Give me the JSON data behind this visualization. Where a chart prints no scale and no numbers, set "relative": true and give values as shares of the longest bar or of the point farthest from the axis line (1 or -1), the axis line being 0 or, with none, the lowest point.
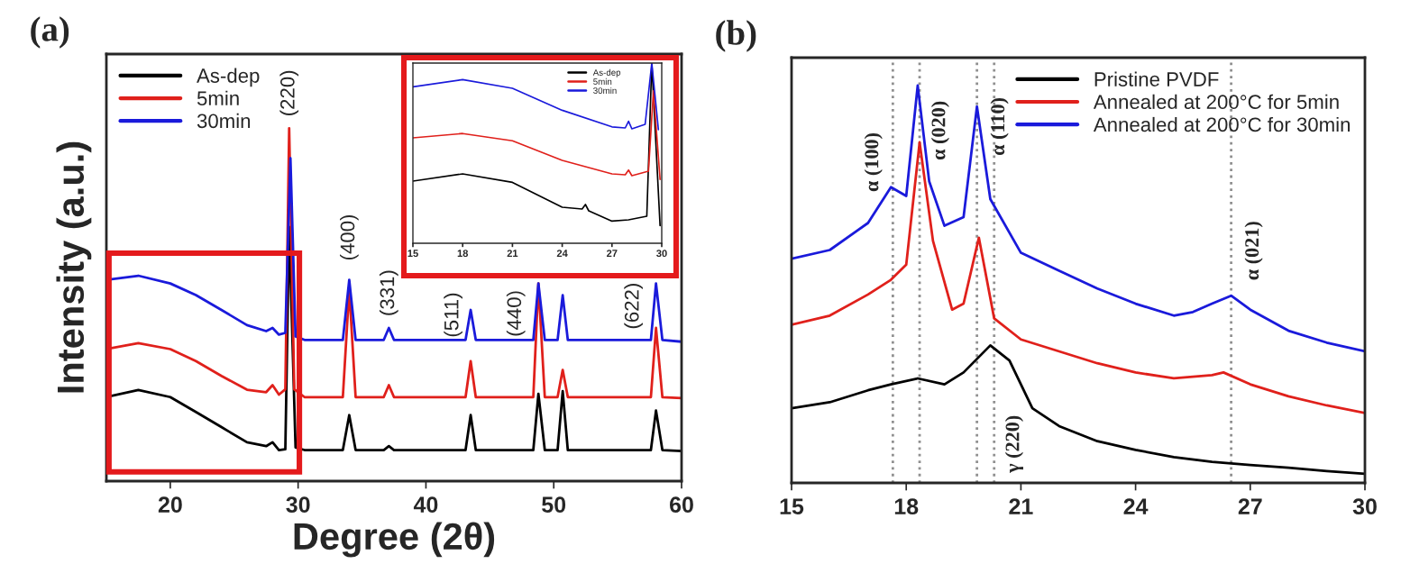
{
  "chart_data": [
    {
      "type": "line",
      "title": "(a)",
      "xlabel": "Degree (2θ)",
      "ylabel": "Intensity (a.u.)",
      "relative": true,
      "xlim": [
        15,
        60
      ],
      "xticks": [
        20,
        30,
        40,
        50,
        60
      ],
      "tick_labels": "x",
      "legend": "top left",
      "grid": false,
      "series": [
        {
          "name": "As-dep",
          "color": "#000000",
          "x": [
            15,
            17.5,
            20,
            22,
            24,
            26,
            27.5,
            28,
            28.5,
            29.0,
            29.3,
            29.8,
            30.5,
            33.5,
            34.0,
            34.5,
            36.7,
            37.1,
            37.5,
            43.1,
            43.5,
            43.9,
            48.4,
            48.8,
            49.3,
            50.3,
            50.7,
            51.1,
            57.6,
            58.0,
            58.5,
            60
          ],
          "values": [
            0.238,
            0.258,
            0.238,
            0.196,
            0.153,
            0.11,
            0.099,
            0.11,
            0.088,
            0.09,
            0.72,
            0.095,
            0.088,
            0.088,
            0.187,
            0.088,
            0.088,
            0.099,
            0.088,
            0.088,
            0.187,
            0.088,
            0.088,
            0.247,
            0.088,
            0.088,
            0.255,
            0.088,
            0.088,
            0.2,
            0.088,
            0.085
          ]
        },
        {
          "name": "5min",
          "color": "#e0201b",
          "x": [
            15,
            17.5,
            20,
            22,
            24,
            26,
            27.5,
            28,
            28.5,
            29.0,
            29.3,
            29.7,
            30.5,
            33.5,
            34.0,
            34.5,
            36.7,
            37.1,
            37.5,
            43.1,
            43.5,
            43.9,
            48.4,
            48.8,
            49.3,
            50.3,
            50.7,
            51.1,
            57.6,
            58.0,
            58.5,
            60
          ],
          "values": [
            0.374,
            0.391,
            0.374,
            0.34,
            0.298,
            0.259,
            0.252,
            0.272,
            0.245,
            0.26,
            1.0,
            0.26,
            0.238,
            0.238,
            0.544,
            0.238,
            0.238,
            0.272,
            0.238,
            0.238,
            0.34,
            0.238,
            0.238,
            0.56,
            0.238,
            0.238,
            0.315,
            0.238,
            0.238,
            0.434,
            0.238,
            0.235
          ]
        },
        {
          "name": "30min",
          "color": "#1a1adb",
          "x": [
            15,
            17.5,
            20,
            22,
            24,
            26,
            27.5,
            28,
            28.5,
            29.0,
            29.4,
            29.8,
            30.5,
            33.5,
            34.0,
            34.5,
            36.7,
            37.1,
            37.5,
            43.1,
            43.5,
            43.9,
            48.4,
            48.8,
            49.3,
            50.3,
            50.7,
            51.1,
            57.6,
            58.0,
            58.5,
            60
          ],
          "values": [
            0.57,
            0.582,
            0.56,
            0.527,
            0.485,
            0.442,
            0.425,
            0.434,
            0.415,
            0.42,
            0.915,
            0.41,
            0.4,
            0.4,
            0.57,
            0.4,
            0.4,
            0.434,
            0.4,
            0.4,
            0.485,
            0.4,
            0.4,
            0.56,
            0.4,
            0.4,
            0.527,
            0.4,
            0.4,
            0.56,
            0.4,
            0.395
          ]
        }
      ],
      "annotations": [
        {
          "text": "(220)",
          "x": 29.3,
          "y": 1.0
        },
        {
          "text": "(400)",
          "x": 34.0,
          "y": 0.57
        },
        {
          "text": "(331)",
          "x": 37.1,
          "y": 0.434
        },
        {
          "text": "(511)",
          "x": 43.5,
          "y": 0.485
        },
        {
          "text": "(440)",
          "x": 48.8,
          "y": 0.56
        },
        {
          "text": "(622)",
          "x": 58.0,
          "y": 0.56
        }
      ]
    },
    {
      "type": "line",
      "relative": true,
      "xlim": [
        15,
        30
      ],
      "xticks": [
        15,
        18,
        21,
        24,
        27,
        30
      ],
      "tick_labels": "x",
      "legend": "top right",
      "grid": false,
      "series": [
        {
          "name": "As-dep",
          "color": "#000000",
          "x": [
            15,
            18,
            21,
            24,
            25.2,
            25.4,
            25.6,
            27,
            28,
            29.1,
            29.4,
            29.9
          ],
          "values": [
            0.345,
            0.385,
            0.338,
            0.2,
            0.19,
            0.215,
            0.18,
            0.123,
            0.13,
            0.15,
            1.0,
            0.098
          ]
        },
        {
          "name": "5min",
          "color": "#e0201b",
          "x": [
            15,
            18,
            21,
            24,
            27,
            27.8,
            28,
            28.2,
            29.2,
            29.5,
            29.9
          ],
          "values": [
            0.585,
            0.609,
            0.569,
            0.46,
            0.385,
            0.38,
            0.406,
            0.375,
            0.4,
            0.846,
            0.354
          ]
        },
        {
          "name": "30min",
          "color": "#1a1adb",
          "x": [
            15,
            18,
            21,
            24,
            27,
            27.8,
            28,
            28.2,
            29.0,
            29.4,
            29.8
          ],
          "values": [
            0.868,
            0.908,
            0.86,
            0.738,
            0.646,
            0.64,
            0.677,
            0.635,
            0.66,
            1.0,
            0.63
          ]
        }
      ]
    },
    {
      "type": "line",
      "title": "(b)",
      "relative": true,
      "xlim": [
        15,
        30
      ],
      "xticks": [
        15,
        18,
        21,
        24,
        27,
        30
      ],
      "tick_labels": "x",
      "legend": "top right",
      "grid": false,
      "series": [
        {
          "name": "Pristine PVDF",
          "color": "#000000",
          "x": [
            15,
            16,
            17,
            17.6,
            18.3,
            19,
            19.5,
            20.2,
            20.7,
            21.3,
            22,
            23,
            24,
            25,
            26,
            27,
            28,
            29,
            30
          ],
          "values": [
            0.188,
            0.203,
            0.233,
            0.248,
            0.263,
            0.248,
            0.278,
            0.346,
            0.308,
            0.188,
            0.143,
            0.105,
            0.083,
            0.065,
            0.053,
            0.045,
            0.038,
            0.03,
            0.023
          ]
        },
        {
          "name": "Annealed at 200°C for 5min",
          "color": "#e0201b",
          "x": [
            15,
            16,
            17,
            17.6,
            18,
            18.35,
            18.7,
            19.2,
            19.5,
            19.9,
            20.3,
            21,
            22,
            23,
            24,
            25,
            26,
            26.3,
            27,
            28,
            29,
            30
          ],
          "values": [
            0.398,
            0.421,
            0.474,
            0.511,
            0.549,
            0.857,
            0.609,
            0.436,
            0.451,
            0.617,
            0.414,
            0.361,
            0.331,
            0.301,
            0.278,
            0.263,
            0.271,
            0.278,
            0.248,
            0.218,
            0.195,
            0.176
          ]
        },
        {
          "name": "Annealed at 200°C for 30min",
          "color": "#1a1adb",
          "x": [
            15,
            16,
            17,
            17.6,
            18,
            18.3,
            18.6,
            19,
            19.5,
            19.85,
            20.2,
            21,
            22,
            23,
            24,
            25,
            25.5,
            26,
            26.5,
            27,
            28,
            29,
            30
          ],
          "values": [
            0.564,
            0.586,
            0.654,
            0.744,
            0.722,
            1.0,
            0.759,
            0.647,
            0.669,
            0.947,
            0.714,
            0.579,
            0.534,
            0.489,
            0.451,
            0.421,
            0.43,
            0.451,
            0.471,
            0.436,
            0.383,
            0.353,
            0.331
          ]
        }
      ],
      "ref_lines": [
        {
          "axis": "x",
          "value": 17.65,
          "color": "#909090",
          "line_style": "dotted"
        },
        {
          "axis": "x",
          "value": 18.35,
          "color": "#909090",
          "line_style": "dotted"
        },
        {
          "axis": "x",
          "value": 19.85,
          "color": "#909090",
          "line_style": "dotted"
        },
        {
          "axis": "x",
          "value": 20.3,
          "color": "#909090",
          "line_style": "dotted"
        },
        {
          "axis": "x",
          "value": 26.5,
          "color": "#909090",
          "line_style": "dotted"
        }
      ],
      "annotations": [
        {
          "text": "α (100)",
          "x": 17.6,
          "y": 0.744
        },
        {
          "text": "α (020)",
          "x": 18.3,
          "y": 1.0
        },
        {
          "text": "α (110)",
          "x": 19.85,
          "y": 0.947
        },
        {
          "text": "α (021)",
          "x": 26.5,
          "y": 0.471
        },
        {
          "text": "γ (220)",
          "x": 20.3,
          "y": 0.098
        }
      ]
    }
  ]
}
